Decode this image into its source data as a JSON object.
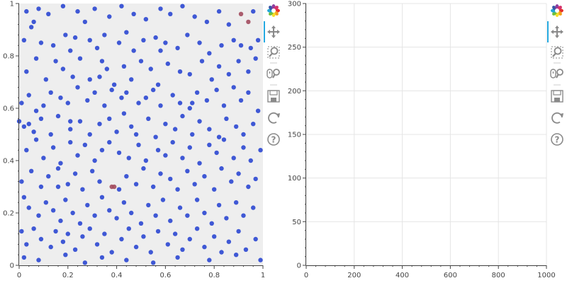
{
  "chart_data": [
    {
      "type": "scatter",
      "xlabel": "",
      "ylabel": "",
      "xlim": [
        0,
        1
      ],
      "ylim": [
        0,
        1
      ],
      "x_ticks": [
        "0",
        "0.2",
        "0.4",
        "0.6",
        "0.8",
        "1"
      ],
      "y_ticks": [
        "0",
        "0.2",
        "0.4",
        "0.6",
        "0.8",
        "1"
      ],
      "grid": false,
      "background_color": "#eeeeee",
      "series": [
        {
          "color": "#2b47d1",
          "points": [
            [
              0.03,
              0.97
            ],
            [
              0.06,
              0.93
            ],
            [
              0.08,
              0.98
            ],
            [
              0.12,
              0.96
            ],
            [
              0.18,
              0.99
            ],
            [
              0.24,
              0.97
            ],
            [
              0.27,
              0.93
            ],
            [
              0.31,
              0.98
            ],
            [
              0.37,
              0.95
            ],
            [
              0.42,
              0.99
            ],
            [
              0.47,
              0.96
            ],
            [
              0.52,
              0.94
            ],
            [
              0.58,
              0.98
            ],
            [
              0.62,
              0.96
            ],
            [
              0.67,
              0.99
            ],
            [
              0.72,
              0.95
            ],
            [
              0.77,
              0.93
            ],
            [
              0.82,
              0.97
            ],
            [
              0.86,
              0.92
            ],
            [
              0.96,
              0.97
            ],
            [
              0.02,
              0.86
            ],
            [
              0.05,
              0.91
            ],
            [
              0.09,
              0.85
            ],
            [
              0.14,
              0.84
            ],
            [
              0.19,
              0.88
            ],
            [
              0.21,
              0.82
            ],
            [
              0.23,
              0.87
            ],
            [
              0.29,
              0.86
            ],
            [
              0.32,
              0.83
            ],
            [
              0.35,
              0.88
            ],
            [
              0.41,
              0.85
            ],
            [
              0.44,
              0.89
            ],
            [
              0.47,
              0.82
            ],
            [
              0.51,
              0.86
            ],
            [
              0.56,
              0.87
            ],
            [
              0.6,
              0.85
            ],
            [
              0.65,
              0.83
            ],
            [
              0.69,
              0.88
            ],
            [
              0.74,
              0.85
            ],
            [
              0.78,
              0.81
            ],
            [
              0.83,
              0.84
            ],
            [
              0.88,
              0.86
            ],
            [
              0.91,
              0.84
            ],
            [
              0.95,
              0.83
            ],
            [
              0.98,
              0.86
            ],
            [
              0.03,
              0.74
            ],
            [
              0.07,
              0.79
            ],
            [
              0.11,
              0.71
            ],
            [
              0.15,
              0.78
            ],
            [
              0.18,
              0.75
            ],
            [
              0.22,
              0.72
            ],
            [
              0.25,
              0.79
            ],
            [
              0.29,
              0.71
            ],
            [
              0.34,
              0.78
            ],
            [
              0.36,
              0.75
            ],
            [
              0.39,
              0.69
            ],
            [
              0.43,
              0.76
            ],
            [
              0.46,
              0.71
            ],
            [
              0.5,
              0.78
            ],
            [
              0.54,
              0.75
            ],
            [
              0.57,
              0.69
            ],
            [
              0.61,
              0.77
            ],
            [
              0.66,
              0.74
            ],
            [
              0.7,
              0.73
            ],
            [
              0.75,
              0.78
            ],
            [
              0.79,
              0.71
            ],
            [
              0.82,
              0.76
            ],
            [
              0.86,
              0.73
            ],
            [
              0.9,
              0.78
            ],
            [
              0.94,
              0.74
            ],
            [
              0.97,
              0.79
            ],
            [
              0.01,
              0.62
            ],
            [
              0.04,
              0.65
            ],
            [
              0.07,
              0.59
            ],
            [
              0.1,
              0.61
            ],
            [
              0.13,
              0.66
            ],
            [
              0.17,
              0.64
            ],
            [
              0.2,
              0.62
            ],
            [
              0.24,
              0.68
            ],
            [
              0.28,
              0.63
            ],
            [
              0.31,
              0.66
            ],
            [
              0.35,
              0.61
            ],
            [
              0.38,
              0.67
            ],
            [
              0.42,
              0.64
            ],
            [
              0.44,
              0.66
            ],
            [
              0.49,
              0.62
            ],
            [
              0.52,
              0.64
            ],
            [
              0.55,
              0.67
            ],
            [
              0.58,
              0.61
            ],
            [
              0.63,
              0.65
            ],
            [
              0.66,
              0.62
            ],
            [
              0.7,
              0.6
            ],
            [
              0.73,
              0.66
            ],
            [
              0.77,
              0.63
            ],
            [
              0.81,
              0.67
            ],
            [
              0.84,
              0.61
            ],
            [
              0.88,
              0.68
            ],
            [
              0.91,
              0.63
            ],
            [
              0.94,
              0.66
            ],
            [
              0.98,
              0.59
            ],
            [
              0.0,
              0.55
            ],
            [
              0.02,
              0.53
            ],
            [
              0.04,
              0.54
            ],
            [
              0.06,
              0.51
            ],
            [
              0.09,
              0.56
            ],
            [
              0.13,
              0.5
            ],
            [
              0.16,
              0.57
            ],
            [
              0.21,
              0.52
            ],
            [
              0.25,
              0.55
            ],
            [
              0.29,
              0.5
            ],
            [
              0.33,
              0.54
            ],
            [
              0.37,
              0.56
            ],
            [
              0.4,
              0.51
            ],
            [
              0.43,
              0.58
            ],
            [
              0.46,
              0.53
            ],
            [
              0.48,
              0.5
            ],
            [
              0.53,
              0.56
            ],
            [
              0.56,
              0.49
            ],
            [
              0.6,
              0.54
            ],
            [
              0.64,
              0.52
            ],
            [
              0.67,
              0.57
            ],
            [
              0.71,
              0.5
            ],
            [
              0.74,
              0.55
            ],
            [
              0.78,
              0.52
            ],
            [
              0.82,
              0.49
            ],
            [
              0.85,
              0.56
            ],
            [
              0.89,
              0.53
            ],
            [
              0.92,
              0.5
            ],
            [
              0.96,
              0.54
            ],
            [
              0.03,
              0.44
            ],
            [
              0.07,
              0.48
            ],
            [
              0.1,
              0.41
            ],
            [
              0.14,
              0.45
            ],
            [
              0.17,
              0.39
            ],
            [
              0.21,
              0.47
            ],
            [
              0.24,
              0.42
            ],
            [
              0.27,
              0.46
            ],
            [
              0.31,
              0.4
            ],
            [
              0.34,
              0.44
            ],
            [
              0.37,
              0.47
            ],
            [
              0.41,
              0.43
            ],
            [
              0.45,
              0.41
            ],
            [
              0.49,
              0.46
            ],
            [
              0.52,
              0.4
            ],
            [
              0.57,
              0.44
            ],
            [
              0.6,
              0.42
            ],
            [
              0.63,
              0.47
            ],
            [
              0.67,
              0.41
            ],
            [
              0.7,
              0.45
            ],
            [
              0.74,
              0.39
            ],
            [
              0.78,
              0.46
            ],
            [
              0.81,
              0.43
            ],
            [
              0.84,
              0.48
            ],
            [
              0.88,
              0.41
            ],
            [
              0.92,
              0.45
            ],
            [
              0.95,
              0.4
            ],
            [
              0.99,
              0.44
            ],
            [
              0.01,
              0.32
            ],
            [
              0.05,
              0.36
            ],
            [
              0.09,
              0.3
            ],
            [
              0.12,
              0.34
            ],
            [
              0.16,
              0.37
            ],
            [
              0.2,
              0.31
            ],
            [
              0.23,
              0.35
            ],
            [
              0.26,
              0.29
            ],
            [
              0.3,
              0.36
            ],
            [
              0.33,
              0.32
            ],
            [
              0.41,
              0.29
            ],
            [
              0.44,
              0.34
            ],
            [
              0.48,
              0.31
            ],
            [
              0.51,
              0.37
            ],
            [
              0.55,
              0.3
            ],
            [
              0.58,
              0.35
            ],
            [
              0.62,
              0.33
            ],
            [
              0.65,
              0.29
            ],
            [
              0.69,
              0.36
            ],
            [
              0.72,
              0.31
            ],
            [
              0.76,
              0.34
            ],
            [
              0.8,
              0.29
            ],
            [
              0.83,
              0.37
            ],
            [
              0.87,
              0.32
            ],
            [
              0.9,
              0.35
            ],
            [
              0.94,
              0.3
            ],
            [
              0.97,
              0.33
            ],
            [
              0.02,
              0.26
            ],
            [
              0.04,
              0.22
            ],
            [
              0.08,
              0.19
            ],
            [
              0.11,
              0.24
            ],
            [
              0.14,
              0.21
            ],
            [
              0.17,
              0.17
            ],
            [
              0.19,
              0.25
            ],
            [
              0.22,
              0.2
            ],
            [
              0.25,
              0.16
            ],
            [
              0.28,
              0.23
            ],
            [
              0.31,
              0.19
            ],
            [
              0.34,
              0.26
            ],
            [
              0.37,
              0.21
            ],
            [
              0.4,
              0.18
            ],
            [
              0.43,
              0.24
            ],
            [
              0.46,
              0.2
            ],
            [
              0.5,
              0.16
            ],
            [
              0.53,
              0.23
            ],
            [
              0.56,
              0.19
            ],
            [
              0.59,
              0.25
            ],
            [
              0.62,
              0.17
            ],
            [
              0.66,
              0.22
            ],
            [
              0.69,
              0.19
            ],
            [
              0.73,
              0.25
            ],
            [
              0.76,
              0.2
            ],
            [
              0.79,
              0.16
            ],
            [
              0.82,
              0.23
            ],
            [
              0.85,
              0.18
            ],
            [
              0.89,
              0.24
            ],
            [
              0.92,
              0.19
            ],
            [
              0.96,
              0.22
            ],
            [
              0.01,
              0.13
            ],
            [
              0.03,
              0.08
            ],
            [
              0.06,
              0.14
            ],
            [
              0.09,
              0.1
            ],
            [
              0.13,
              0.07
            ],
            [
              0.15,
              0.13
            ],
            [
              0.18,
              0.09
            ],
            [
              0.2,
              0.12
            ],
            [
              0.23,
              0.06
            ],
            [
              0.26,
              0.11
            ],
            [
              0.29,
              0.14
            ],
            [
              0.32,
              0.08
            ],
            [
              0.35,
              0.12
            ],
            [
              0.38,
              0.05
            ],
            [
              0.42,
              0.1
            ],
            [
              0.45,
              0.14
            ],
            [
              0.48,
              0.07
            ],
            [
              0.51,
              0.11
            ],
            [
              0.54,
              0.05
            ],
            [
              0.57,
              0.13
            ],
            [
              0.61,
              0.08
            ],
            [
              0.64,
              0.12
            ],
            [
              0.67,
              0.06
            ],
            [
              0.7,
              0.1
            ],
            [
              0.73,
              0.14
            ],
            [
              0.76,
              0.07
            ],
            [
              0.8,
              0.11
            ],
            [
              0.83,
              0.05
            ],
            [
              0.86,
              0.09
            ],
            [
              0.9,
              0.13
            ],
            [
              0.93,
              0.06
            ],
            [
              0.97,
              0.1
            ],
            [
              0.02,
              0.03
            ],
            [
              0.08,
              0.02
            ],
            [
              0.19,
              0.04
            ],
            [
              0.27,
              0.01
            ],
            [
              0.34,
              0.03
            ],
            [
              0.44,
              0.02
            ],
            [
              0.55,
              0.01
            ],
            [
              0.65,
              0.03
            ],
            [
              0.78,
              0.02
            ],
            [
              0.89,
              0.04
            ],
            [
              0.99,
              0.02
            ],
            [
              0.21,
              0.55
            ],
            [
              0.33,
              0.72
            ],
            [
              0.58,
              0.82
            ],
            [
              0.71,
              0.62
            ],
            [
              0.16,
              0.3
            ]
          ]
        },
        {
          "color": "#a24b5e",
          "points": [
            [
              0.91,
              0.96
            ],
            [
              0.94,
              0.93
            ],
            [
              0.38,
              0.3
            ],
            [
              0.39,
              0.3
            ]
          ]
        }
      ]
    },
    {
      "type": "scatter",
      "xlabel": "",
      "ylabel": "",
      "xlim": [
        0,
        1000
      ],
      "ylim": [
        0,
        300
      ],
      "x_ticks": [
        "0",
        "200",
        "400",
        "600",
        "800",
        "1000"
      ],
      "y_ticks": [
        "0",
        "50",
        "100",
        "150",
        "200",
        "250",
        "300"
      ],
      "grid": true,
      "background_color": "#ffffff",
      "series": []
    }
  ],
  "toolbar": {
    "accent_color": "#26aae1",
    "icons": [
      "bokeh-logo-icon",
      "pan-icon",
      "box-zoom-icon",
      "wheel-zoom-icon",
      "save-icon",
      "reset-icon",
      "help-icon"
    ]
  }
}
